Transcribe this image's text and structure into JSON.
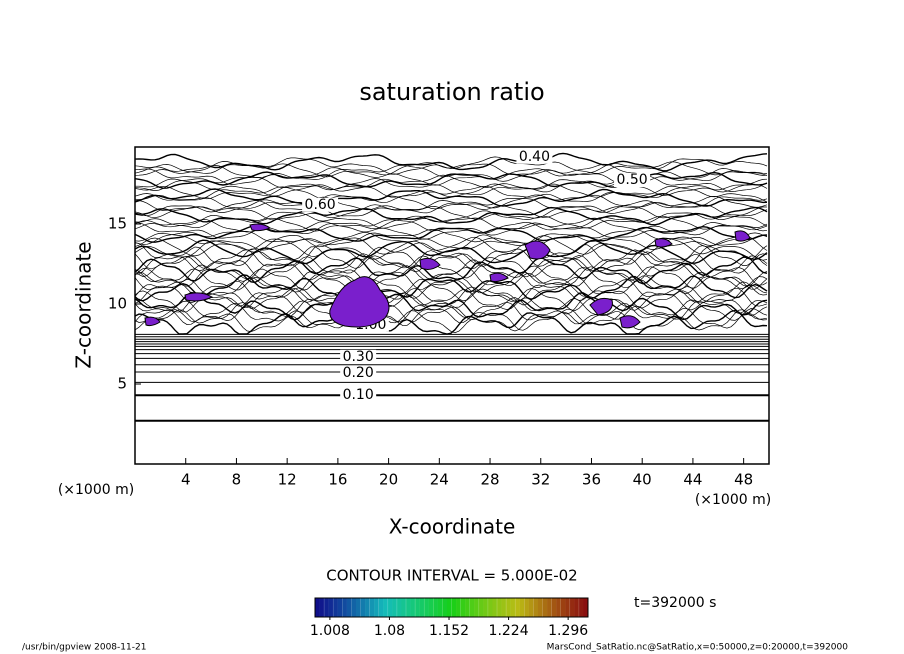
{
  "chart_data": {
    "type": "contour",
    "title": "saturation ratio",
    "x_label": "X-coordinate",
    "y_label": "Z-coordinate",
    "x_unit": "(×1000 m)",
    "y_unit": "(×1000 m)",
    "xlim": [
      0,
      50
    ],
    "xticks": [
      4,
      8,
      12,
      16,
      20,
      24,
      28,
      32,
      36,
      40,
      44,
      48
    ],
    "ylim": [
      0,
      20
    ],
    "yticks": [
      5,
      10,
      15
    ],
    "contour_lines": {
      "z": [
        2.7,
        4.3,
        5.1,
        5.75,
        6.2,
        6.6,
        6.9,
        7.15,
        7.35,
        7.5,
        7.65,
        7.8,
        7.95,
        8.1
      ]
    },
    "contour_labels": [
      {
        "level": {
          "value": 0.4,
          "label": "0.40"
        },
        "x": 31.5,
        "z": 19.2
      },
      {
        "level": {
          "value": 0.5,
          "label": "0.50"
        },
        "x": 39.2,
        "z": 17.75
      },
      {
        "level": {
          "value": 0.6,
          "label": "0.60"
        },
        "x": 14.6,
        "z": 16.2
      },
      {
        "level": {
          "value": 1.0,
          "label": "1.00"
        },
        "x": 18.6,
        "z": 8.7
      },
      {
        "level": {
          "value": 0.3,
          "label": "0.30"
        },
        "x": 17.6,
        "z": 6.7
      },
      {
        "level": {
          "value": 0.2,
          "label": "0.20"
        },
        "x": 17.6,
        "z": 5.7
      },
      {
        "level": {
          "value": 0.1,
          "label": "0.10"
        },
        "x": 17.6,
        "z": 4.3
      }
    ],
    "contour_interval": "CONTOUR INTERVAL = 5.000E-02",
    "time_label": "t=392000 s",
    "colorbar": {
      "lim": [
        0.99,
        1.32
      ],
      "ticks": [
        1.008,
        1.08,
        1.152,
        1.224,
        1.296
      ]
    },
    "footer_left": "/usr/bin/gpview  2008-11-21",
    "footer_right": "MarsCond_SatRatio.nc@SatRatio,x=0:50000,z=0:20000,t=392000"
  }
}
